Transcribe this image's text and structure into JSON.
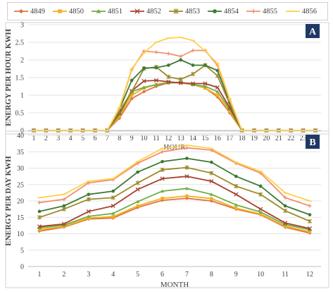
{
  "legend": [
    {
      "name": "4849",
      "color": "#E0743F",
      "marker": "diamond"
    },
    {
      "name": "4850",
      "color": "#F2B01C",
      "marker": "square"
    },
    {
      "name": "4851",
      "color": "#70AD47",
      "marker": "triangle"
    },
    {
      "name": "4852",
      "color": "#A5402F",
      "marker": "x"
    },
    {
      "name": "4853",
      "color": "#9C8A2A",
      "marker": "star"
    },
    {
      "name": "4854",
      "color": "#3D7A34",
      "marker": "circle"
    },
    {
      "name": "4855",
      "color": "#F0906E",
      "marker": "plus"
    },
    {
      "name": "4856",
      "color": "#FFD04A",
      "marker": "dash"
    }
  ],
  "chart_data": [
    {
      "type": "line",
      "panel_label": "A",
      "xlabel": "HOUR",
      "ylabel": "ENERGY PER HOUR KWH",
      "x": [
        1,
        2,
        3,
        4,
        5,
        6,
        7,
        8,
        9,
        10,
        11,
        12,
        13,
        14,
        15,
        16,
        17,
        18,
        19,
        20,
        21,
        22,
        23,
        24
      ],
      "ylim": [
        0,
        3
      ],
      "yticks": [
        0,
        0.5,
        1,
        1.5,
        2,
        2.5,
        3
      ],
      "grid": "horizontal",
      "series": [
        {
          "name": "4849",
          "values": [
            0,
            0,
            0,
            0,
            0,
            0,
            0,
            0.35,
            0.9,
            1.1,
            1.25,
            1.35,
            1.35,
            1.3,
            1.2,
            0.95,
            0.5,
            0,
            0,
            0,
            0,
            0,
            0,
            0
          ]
        },
        {
          "name": "4850",
          "values": [
            0,
            0,
            0,
            0,
            0,
            0,
            0,
            0.4,
            1.0,
            1.2,
            1.3,
            1.37,
            1.35,
            1.3,
            1.2,
            1.0,
            0.55,
            0,
            0,
            0,
            0,
            0,
            0,
            0
          ]
        },
        {
          "name": "4851",
          "values": [
            0,
            0,
            0,
            0,
            0,
            0,
            0,
            0.45,
            1.1,
            1.22,
            1.3,
            1.35,
            1.37,
            1.3,
            1.25,
            1.1,
            0.6,
            0,
            0,
            0,
            0,
            0,
            0,
            0
          ]
        },
        {
          "name": "4852",
          "values": [
            0,
            0,
            0,
            0,
            0,
            0,
            0,
            0.5,
            1.12,
            1.4,
            1.42,
            1.38,
            1.35,
            1.33,
            1.33,
            1.22,
            0.65,
            0,
            0,
            0,
            0,
            0,
            0,
            0
          ]
        },
        {
          "name": "4853",
          "values": [
            0,
            0,
            0,
            0,
            0,
            0,
            0,
            0.55,
            1.1,
            1.75,
            1.8,
            1.52,
            1.45,
            1.6,
            1.85,
            1.55,
            0.75,
            0,
            0,
            0,
            0,
            0,
            0,
            0
          ]
        },
        {
          "name": "4854",
          "values": [
            0,
            0,
            0,
            0,
            0,
            0,
            0,
            0.6,
            1.42,
            1.77,
            1.78,
            1.85,
            2.0,
            1.85,
            1.85,
            1.7,
            0.8,
            0,
            0,
            0,
            0,
            0,
            0,
            0
          ]
        },
        {
          "name": "4855",
          "values": [
            0,
            0,
            0,
            0,
            0,
            0,
            0,
            0.62,
            1.72,
            2.25,
            2.22,
            2.18,
            2.1,
            2.27,
            2.27,
            1.85,
            0.85,
            0,
            0,
            0,
            0,
            0,
            0,
            0
          ]
        },
        {
          "name": "4856",
          "values": [
            0,
            0,
            0,
            0,
            0,
            0,
            0,
            0.65,
            1.75,
            2.2,
            2.5,
            2.62,
            2.64,
            2.55,
            2.25,
            1.9,
            0.9,
            0,
            0,
            0,
            0,
            0,
            0,
            0
          ]
        }
      ]
    },
    {
      "type": "line",
      "panel_label": "B",
      "xlabel": "MONTH",
      "ylabel": "ENERGY PER DAY KWH",
      "x": [
        1,
        2,
        3,
        4,
        5,
        6,
        7,
        8,
        9,
        10,
        11,
        12
      ],
      "ylim": [
        0,
        40
      ],
      "yticks": [
        0,
        5,
        10,
        15,
        20,
        25,
        30,
        35,
        40
      ],
      "grid": "horizontal",
      "series": [
        {
          "name": "4849",
          "values": [
            10.8,
            12.0,
            14.5,
            14.8,
            18.0,
            20.2,
            20.8,
            20.0,
            17.5,
            15.8,
            12.0,
            10.2
          ]
        },
        {
          "name": "4850",
          "values": [
            11.3,
            12.2,
            14.8,
            15.2,
            18.5,
            20.8,
            21.5,
            20.7,
            17.8,
            16.0,
            12.3,
            10.6
          ]
        },
        {
          "name": "4851",
          "values": [
            11.8,
            12.6,
            15.3,
            16.2,
            19.8,
            23.0,
            23.8,
            22.0,
            18.8,
            16.6,
            12.8,
            11.2
          ]
        },
        {
          "name": "4852",
          "values": [
            12.2,
            13.0,
            16.8,
            18.5,
            23.5,
            26.8,
            27.5,
            26.0,
            22.0,
            17.5,
            13.3,
            11.6
          ]
        },
        {
          "name": "4853",
          "values": [
            15.0,
            17.5,
            20.5,
            21.0,
            25.5,
            29.5,
            30.2,
            28.5,
            24.5,
            22.0,
            17.0,
            13.8
          ]
        },
        {
          "name": "4854",
          "values": [
            16.8,
            18.5,
            22.0,
            23.0,
            28.8,
            32.0,
            33.0,
            31.8,
            27.5,
            24.5,
            18.5,
            15.8
          ]
        },
        {
          "name": "4855",
          "values": [
            19.5,
            20.5,
            25.5,
            26.5,
            31.5,
            35.0,
            36.2,
            35.5,
            31.5,
            28.5,
            21.0,
            18.5
          ]
        },
        {
          "name": "4856",
          "values": [
            21.0,
            22.0,
            26.0,
            26.8,
            32.0,
            36.0,
            37.0,
            36.0,
            31.8,
            29.0,
            22.5,
            20.0
          ]
        }
      ]
    }
  ]
}
